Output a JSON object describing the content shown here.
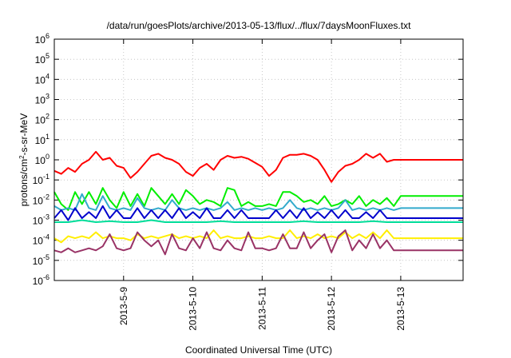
{
  "chart_data": {
    "type": "line",
    "title": "/data/run/goesPlots/archive/2013-05-13/flux/../flux/7daysMoonFluxes.txt",
    "xlabel": "Coordinated Universal Time (UTC)",
    "ylabel_prefix": "protons/cm",
    "ylabel_sup": "2",
    "ylabel_suffix": "-s-sr-MeV",
    "y_scale": "log",
    "ylim": [
      1e-06,
      1000000.0
    ],
    "xlim": [
      0,
      5.9
    ],
    "grid": true,
    "y_ticks": [
      {
        "base": "10",
        "exp": "6",
        "v": 6
      },
      {
        "base": "10",
        "exp": "5",
        "v": 5
      },
      {
        "base": "10",
        "exp": "4",
        "v": 4
      },
      {
        "base": "10",
        "exp": "3",
        "v": 3
      },
      {
        "base": "10",
        "exp": "2",
        "v": 2
      },
      {
        "base": "10",
        "exp": "1",
        "v": 1
      },
      {
        "base": "10",
        "exp": "0",
        "v": 0
      },
      {
        "base": "10",
        "exp": "-1",
        "v": -1
      },
      {
        "base": "10",
        "exp": "-2",
        "v": -2
      },
      {
        "base": "10",
        "exp": "-3",
        "v": -3
      },
      {
        "base": "10",
        "exp": "-4",
        "v": -4
      },
      {
        "base": "10",
        "exp": "-5",
        "v": -5
      },
      {
        "base": "10",
        "exp": "-6",
        "v": -6
      }
    ],
    "x_ticks": [
      {
        "label": "2013-5-9",
        "x": 1
      },
      {
        "label": "2013-5-10",
        "x": 2
      },
      {
        "label": "2013-5-11",
        "x": 3
      },
      {
        "label": "2013-5-12",
        "x": 4
      },
      {
        "label": "2013-5-13",
        "x": 5
      }
    ],
    "series": [
      {
        "color": "#ff0000",
        "x": [
          0,
          0.1,
          0.2,
          0.3,
          0.4,
          0.5,
          0.6,
          0.7,
          0.8,
          0.9,
          1.0,
          1.1,
          1.2,
          1.3,
          1.4,
          1.5,
          1.6,
          1.7,
          1.8,
          1.9,
          2.0,
          2.1,
          2.2,
          2.3,
          2.4,
          2.5,
          2.6,
          2.7,
          2.8,
          2.9,
          3.0,
          3.1,
          3.2,
          3.3,
          3.4,
          3.5,
          3.6,
          3.7,
          3.8,
          3.9,
          4.0,
          4.1,
          4.2,
          4.3,
          4.4,
          4.5,
          4.6,
          4.7,
          4.8,
          4.9,
          5.9
        ],
        "y": [
          -0.55,
          -0.7,
          -0.4,
          -0.6,
          -0.2,
          0.0,
          0.4,
          0.0,
          0.1,
          -0.3,
          -0.4,
          -0.9,
          -0.6,
          -0.2,
          0.2,
          0.3,
          0.1,
          0.0,
          -0.2,
          -0.6,
          -0.8,
          -0.4,
          -0.2,
          -0.5,
          0.0,
          0.2,
          0.1,
          0.15,
          0.05,
          -0.15,
          -0.35,
          -0.8,
          -0.5,
          0.1,
          0.25,
          0.25,
          0.3,
          0.2,
          0.0,
          -0.5,
          -1.1,
          -0.6,
          -0.3,
          -0.2,
          0.0,
          0.3,
          0.1,
          0.3,
          -0.1,
          0.0,
          0.0
        ]
      },
      {
        "color": "#00ee00",
        "x": [
          0,
          0.1,
          0.2,
          0.3,
          0.4,
          0.5,
          0.6,
          0.7,
          0.8,
          0.9,
          1.0,
          1.1,
          1.2,
          1.3,
          1.4,
          1.5,
          1.6,
          1.7,
          1.8,
          1.9,
          2.0,
          2.1,
          2.2,
          2.3,
          2.4,
          2.5,
          2.6,
          2.7,
          2.8,
          2.9,
          3.0,
          3.1,
          3.2,
          3.3,
          3.4,
          3.5,
          3.6,
          3.7,
          3.8,
          3.9,
          4.0,
          4.1,
          4.2,
          4.3,
          4.4,
          4.5,
          4.6,
          4.7,
          4.8,
          4.9,
          5.0,
          5.9
        ],
        "y": [
          -1.6,
          -2.2,
          -2.5,
          -1.6,
          -2.2,
          -1.6,
          -2.2,
          -1.4,
          -2.0,
          -2.4,
          -1.6,
          -2.3,
          -1.7,
          -2.3,
          -1.4,
          -1.8,
          -2.2,
          -1.7,
          -2.2,
          -1.5,
          -1.8,
          -2.2,
          -2.0,
          -2.1,
          -2.3,
          -1.4,
          -1.5,
          -2.3,
          -2.1,
          -2.3,
          -2.3,
          -2.2,
          -2.3,
          -1.6,
          -1.6,
          -1.8,
          -2.1,
          -2.0,
          -2.2,
          -1.8,
          -2.3,
          -2.2,
          -2.0,
          -2.2,
          -1.8,
          -2.3,
          -2.0,
          -2.2,
          -1.9,
          -2.3,
          -1.8,
          -1.8
        ]
      },
      {
        "color": "#33aacc",
        "x": [
          0,
          0.1,
          0.2,
          0.3,
          0.4,
          0.5,
          0.6,
          0.7,
          0.8,
          0.9,
          1.0,
          1.1,
          1.2,
          1.3,
          1.4,
          1.5,
          1.6,
          1.7,
          1.8,
          1.9,
          2.0,
          2.1,
          2.2,
          2.3,
          2.4,
          2.5,
          2.6,
          2.7,
          2.8,
          2.9,
          3.0,
          3.1,
          3.2,
          3.3,
          3.4,
          3.5,
          3.6,
          3.7,
          3.8,
          3.9,
          4.0,
          4.1,
          4.2,
          4.3,
          4.4,
          4.5,
          4.6,
          4.7,
          4.8,
          4.9,
          5.0,
          5.9
        ],
        "y": [
          -2.3,
          -2.5,
          -2.4,
          -2.5,
          -1.7,
          -2.4,
          -2.5,
          -1.8,
          -2.4,
          -2.5,
          -2.4,
          -2.5,
          -1.9,
          -2.4,
          -2.5,
          -2.4,
          -2.5,
          -2.0,
          -2.4,
          -2.5,
          -2.4,
          -2.5,
          -2.4,
          -2.5,
          -2.4,
          -2.1,
          -2.5,
          -2.4,
          -2.5,
          -2.4,
          -2.5,
          -2.4,
          -2.5,
          -2.4,
          -2.0,
          -2.4,
          -2.5,
          -2.4,
          -2.5,
          -2.4,
          -2.5,
          -2.4,
          -2.0,
          -2.5,
          -2.4,
          -2.5,
          -2.4,
          -2.5,
          -2.4,
          -2.5,
          -2.4,
          -2.4
        ]
      },
      {
        "color": "#0000cc",
        "x": [
          0,
          0.1,
          0.2,
          0.3,
          0.4,
          0.5,
          0.6,
          0.7,
          0.8,
          0.9,
          1.0,
          1.1,
          1.2,
          1.3,
          1.4,
          1.5,
          1.6,
          1.7,
          1.8,
          1.9,
          2.0,
          2.1,
          2.2,
          2.3,
          2.4,
          2.5,
          2.6,
          2.7,
          2.8,
          2.9,
          3.0,
          3.1,
          3.2,
          3.3,
          3.4,
          3.5,
          3.6,
          3.7,
          3.8,
          3.9,
          4.0,
          4.1,
          4.2,
          4.3,
          4.4,
          4.5,
          4.6,
          4.7,
          4.8,
          4.9,
          5.0,
          5.9
        ],
        "y": [
          -2.9,
          -2.5,
          -3.0,
          -2.4,
          -2.9,
          -2.6,
          -2.9,
          -2.3,
          -2.9,
          -2.5,
          -2.9,
          -2.9,
          -2.4,
          -2.9,
          -2.5,
          -2.9,
          -2.5,
          -2.9,
          -2.4,
          -2.9,
          -2.6,
          -2.9,
          -2.4,
          -2.9,
          -2.9,
          -2.5,
          -2.9,
          -2.5,
          -2.9,
          -2.9,
          -2.9,
          -2.9,
          -2.5,
          -2.9,
          -2.5,
          -2.9,
          -2.4,
          -2.9,
          -2.6,
          -2.9,
          -2.5,
          -2.9,
          -2.5,
          -2.9,
          -2.9,
          -2.6,
          -2.9,
          -2.5,
          -2.9,
          -2.9,
          -2.9,
          -2.9
        ]
      },
      {
        "color": "#00dd99",
        "x": [
          0,
          0.2,
          0.4,
          0.6,
          0.8,
          1.0,
          1.2,
          1.4,
          1.6,
          1.8,
          2.0,
          2.2,
          2.4,
          2.6,
          2.8,
          3.0,
          3.2,
          3.4,
          3.6,
          3.8,
          4.0,
          4.2,
          4.4,
          4.6,
          4.8,
          5.0,
          5.9
        ],
        "y": [
          -3.1,
          -3.1,
          -3.0,
          -3.1,
          -3.05,
          -3.1,
          -3.1,
          -3.0,
          -3.1,
          -3.1,
          -3.1,
          -3.1,
          -3.05,
          -3.1,
          -3.1,
          -3.1,
          -3.1,
          -3.1,
          -3.05,
          -3.1,
          -3.1,
          -3.1,
          -3.1,
          -3.05,
          -3.1,
          -3.1,
          -3.1
        ]
      },
      {
        "color": "#ffee00",
        "x": [
          0,
          0.1,
          0.2,
          0.3,
          0.4,
          0.5,
          0.6,
          0.7,
          0.8,
          0.9,
          1.0,
          1.1,
          1.2,
          1.3,
          1.4,
          1.5,
          1.6,
          1.7,
          1.8,
          1.9,
          2.0,
          2.1,
          2.2,
          2.3,
          2.4,
          2.5,
          2.6,
          2.7,
          2.8,
          2.9,
          3.0,
          3.1,
          3.2,
          3.3,
          3.4,
          3.5,
          3.6,
          3.7,
          3.8,
          3.9,
          4.0,
          4.1,
          4.2,
          4.3,
          4.4,
          4.5,
          4.6,
          4.7,
          4.8,
          4.9,
          5.0,
          5.9
        ],
        "y": [
          -3.9,
          -4.1,
          -3.8,
          -3.9,
          -3.8,
          -3.9,
          -3.6,
          -3.9,
          -3.8,
          -3.9,
          -3.9,
          -4.0,
          -3.7,
          -3.9,
          -3.8,
          -3.9,
          -3.8,
          -3.7,
          -3.9,
          -3.8,
          -3.9,
          -3.8,
          -3.9,
          -3.5,
          -3.9,
          -3.8,
          -3.9,
          -3.9,
          -3.8,
          -3.9,
          -3.9,
          -3.8,
          -3.9,
          -3.9,
          -3.5,
          -3.9,
          -3.8,
          -3.9,
          -3.7,
          -3.9,
          -3.8,
          -3.9,
          -3.6,
          -3.9,
          -3.7,
          -3.9,
          -3.6,
          -3.9,
          -3.5,
          -3.9,
          -3.9,
          -3.9
        ]
      },
      {
        "color": "#993366",
        "x": [
          0,
          0.1,
          0.2,
          0.3,
          0.4,
          0.5,
          0.6,
          0.7,
          0.8,
          0.9,
          1.0,
          1.1,
          1.2,
          1.3,
          1.4,
          1.5,
          1.6,
          1.7,
          1.8,
          1.9,
          2.0,
          2.1,
          2.2,
          2.3,
          2.4,
          2.5,
          2.6,
          2.7,
          2.8,
          2.9,
          3.0,
          3.1,
          3.2,
          3.3,
          3.4,
          3.5,
          3.6,
          3.7,
          3.8,
          3.9,
          4.0,
          4.1,
          4.2,
          4.3,
          4.4,
          4.5,
          4.6,
          4.7,
          4.8,
          4.9,
          5.0,
          5.9
        ],
        "y": [
          -4.5,
          -4.6,
          -4.4,
          -4.6,
          -4.5,
          -4.4,
          -4.5,
          -4.3,
          -3.7,
          -4.4,
          -4.5,
          -4.4,
          -3.6,
          -4.0,
          -4.3,
          -4.0,
          -4.7,
          -3.7,
          -4.4,
          -4.5,
          -3.9,
          -4.4,
          -3.6,
          -4.4,
          -4.5,
          -4.0,
          -4.4,
          -4.5,
          -3.6,
          -4.4,
          -4.4,
          -4.5,
          -4.4,
          -3.7,
          -4.4,
          -4.4,
          -3.6,
          -4.4,
          -4.0,
          -3.7,
          -4.6,
          -3.8,
          -3.5,
          -4.5,
          -4.0,
          -4.4,
          -3.7,
          -4.4,
          -4.0,
          -4.5,
          -4.5,
          -4.5
        ]
      }
    ]
  }
}
